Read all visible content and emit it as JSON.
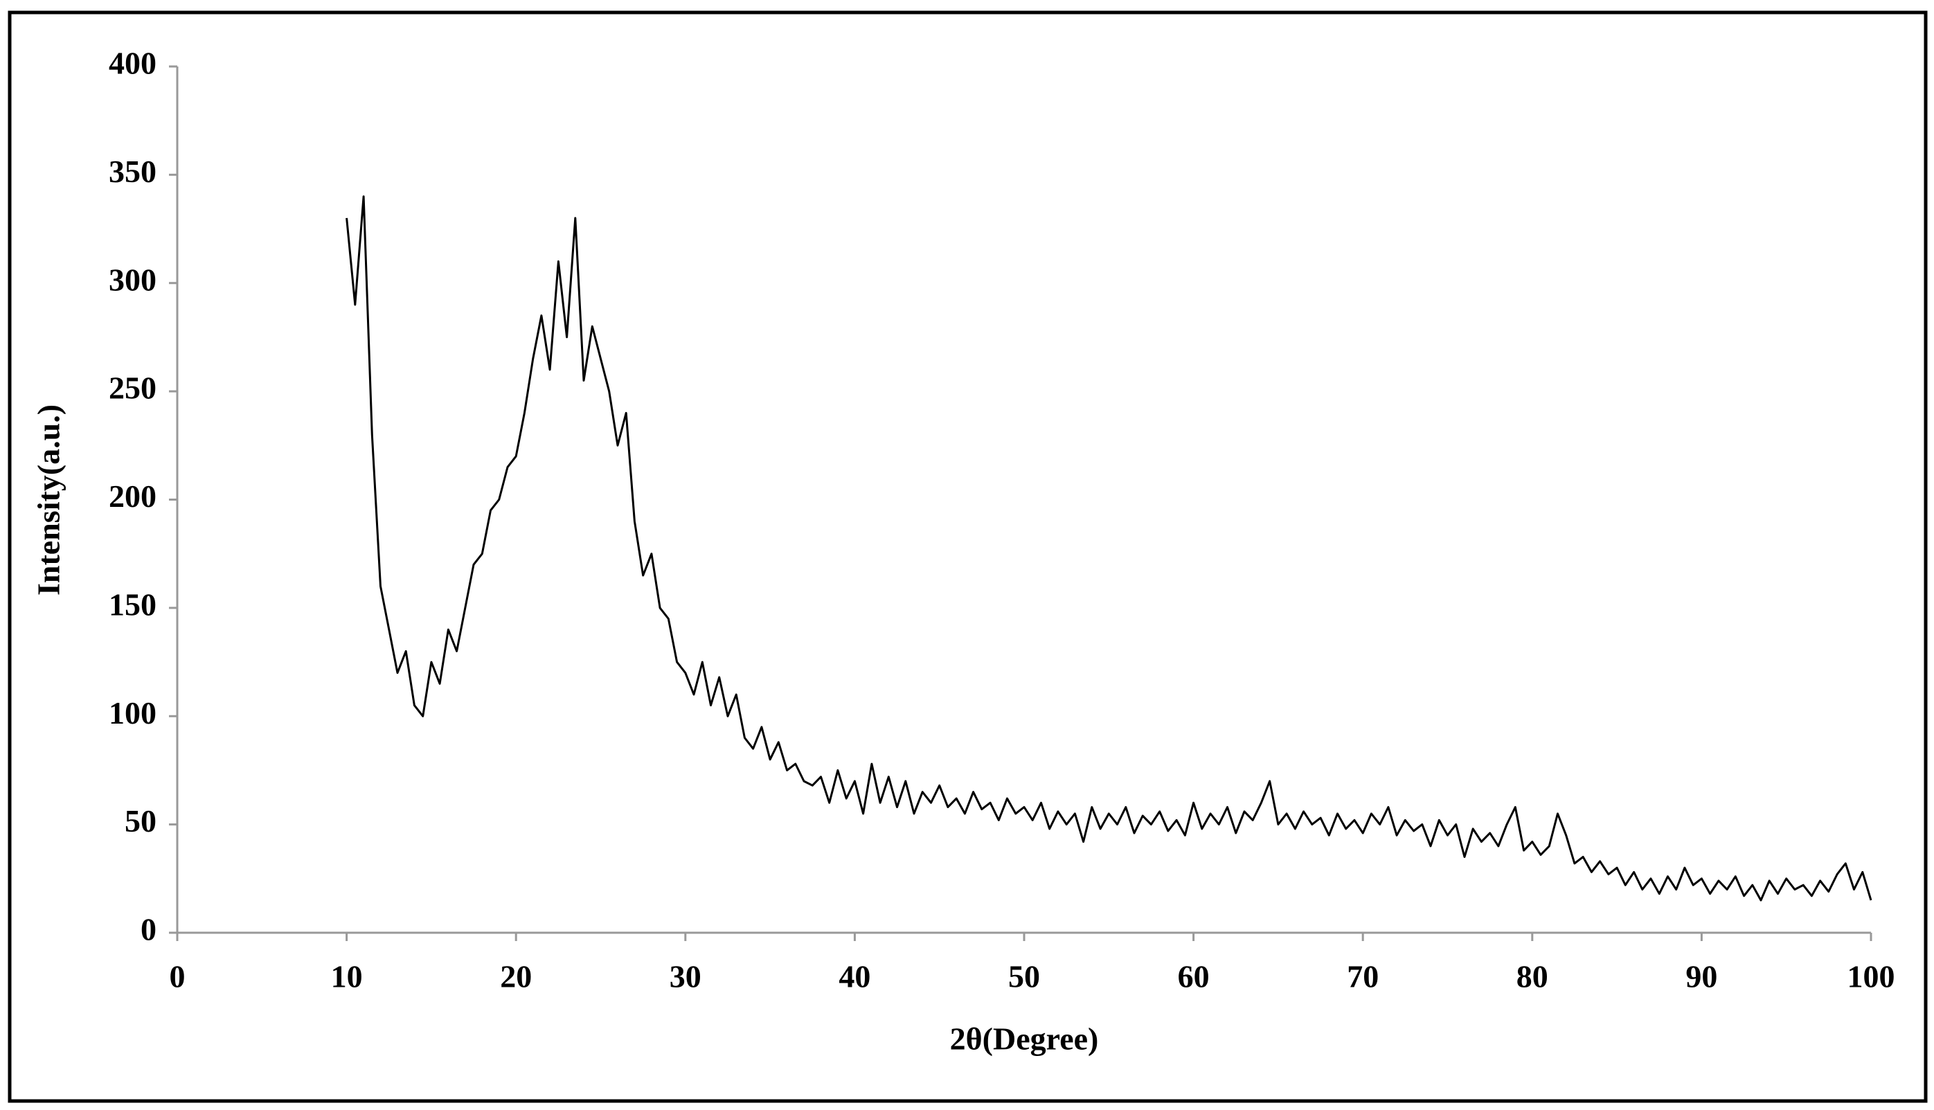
{
  "chart_data": {
    "type": "line",
    "x_label": "2θ(Degree)",
    "y_label": "Intensity(a.u.)",
    "xlim": [
      0,
      100
    ],
    "xticks": [
      0,
      10,
      20,
      30,
      40,
      50,
      60,
      70,
      80,
      90,
      100
    ],
    "ylim": [
      0,
      400
    ],
    "yticks": [
      0,
      50,
      100,
      150,
      200,
      250,
      300,
      350,
      400
    ],
    "color": "#000000",
    "x": [
      10,
      10.5,
      11,
      11.5,
      12,
      12.5,
      13,
      13.5,
      14,
      14.5,
      15,
      15.5,
      16,
      16.5,
      17,
      17.5,
      18,
      18.5,
      19,
      19.5,
      20,
      20.5,
      21,
      21.5,
      22,
      22.5,
      23,
      23.5,
      24,
      24.5,
      25,
      25.5,
      26,
      26.5,
      27,
      27.5,
      28,
      28.5,
      29,
      29.5,
      30,
      30.5,
      31,
      31.5,
      32,
      32.5,
      33,
      33.5,
      34,
      34.5,
      35,
      35.5,
      36,
      36.5,
      37,
      37.5,
      38,
      38.5,
      39,
      39.5,
      40,
      40.5,
      41,
      41.5,
      42,
      42.5,
      43,
      43.5,
      44,
      44.5,
      45,
      45.5,
      46,
      46.5,
      47,
      47.5,
      48,
      48.5,
      49,
      49.5,
      50,
      50.5,
      51,
      51.5,
      52,
      52.5,
      53,
      53.5,
      54,
      54.5,
      55,
      55.5,
      56,
      56.5,
      57,
      57.5,
      58,
      58.5,
      59,
      59.5,
      60,
      60.5,
      61,
      61.5,
      62,
      62.5,
      63,
      63.5,
      64,
      64.5,
      65,
      65.5,
      66,
      66.5,
      67,
      67.5,
      68,
      68.5,
      69,
      69.5,
      70,
      70.5,
      71,
      71.5,
      72,
      72.5,
      73,
      73.5,
      74,
      74.5,
      75,
      75.5,
      76,
      76.5,
      77,
      77.5,
      78,
      78.5,
      79,
      79.5,
      80,
      80.5,
      81,
      81.5,
      82,
      82.5,
      83,
      83.5,
      84,
      84.5,
      85,
      85.5,
      86,
      86.5,
      87,
      87.5,
      88,
      88.5,
      89,
      89.5,
      90,
      90.5,
      91,
      91.5,
      92,
      92.5,
      93,
      93.5,
      94,
      94.5,
      95,
      95.5,
      96,
      96.5,
      97,
      97.5,
      98,
      98.5,
      99,
      99.5,
      100
    ],
    "values": [
      330,
      290,
      340,
      230,
      160,
      140,
      120,
      130,
      105,
      100,
      125,
      115,
      140,
      130,
      150,
      170,
      175,
      195,
      200,
      215,
      220,
      240,
      265,
      285,
      260,
      310,
      275,
      330,
      255,
      280,
      265,
      250,
      225,
      240,
      190,
      165,
      175,
      150,
      145,
      125,
      120,
      110,
      125,
      105,
      118,
      100,
      110,
      90,
      85,
      95,
      80,
      88,
      75,
      78,
      70,
      68,
      72,
      60,
      75,
      62,
      70,
      55,
      78,
      60,
      72,
      58,
      70,
      55,
      65,
      60,
      68,
      58,
      62,
      55,
      65,
      57,
      60,
      52,
      62,
      55,
      58,
      52,
      60,
      48,
      56,
      50,
      55,
      42,
      58,
      48,
      55,
      50,
      58,
      46,
      54,
      50,
      56,
      47,
      52,
      45,
      60,
      48,
      55,
      50,
      58,
      46,
      56,
      52,
      60,
      70,
      50,
      55,
      48,
      56,
      50,
      53,
      45,
      55,
      48,
      52,
      46,
      55,
      50,
      58,
      45,
      52,
      47,
      50,
      40,
      52,
      45,
      50,
      35,
      48,
      42,
      46,
      40,
      50,
      58,
      38,
      42,
      36,
      40,
      55,
      45,
      32,
      35,
      28,
      33,
      27,
      30,
      22,
      28,
      20,
      25,
      18,
      26,
      20,
      30,
      22,
      25,
      18,
      24,
      20,
      26,
      17,
      22,
      15,
      24,
      18,
      25,
      20,
      22,
      17,
      24,
      19,
      27,
      32,
      20,
      28,
      15
    ]
  }
}
